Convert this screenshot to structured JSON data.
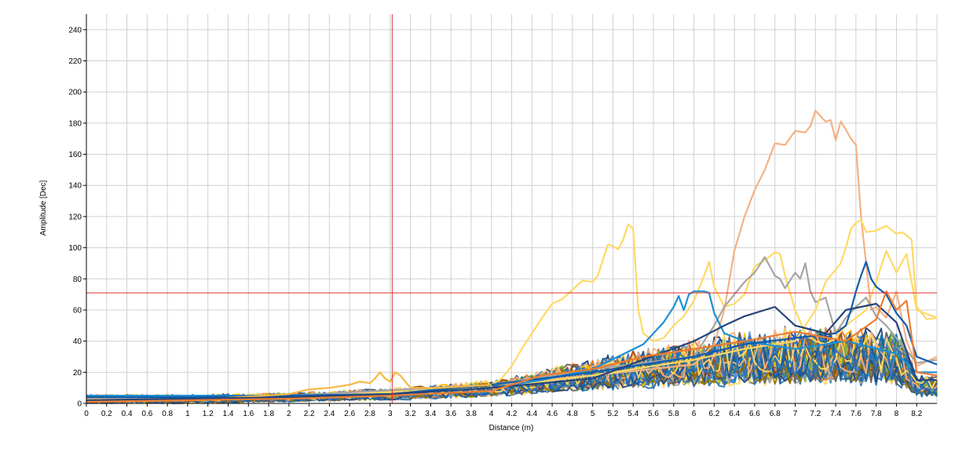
{
  "chart_data": {
    "type": "line",
    "title": "",
    "xlabel": "Distance (m)",
    "ylabel": "Amplitude [Dec]",
    "xlim": [
      0,
      8.4
    ],
    "ylim": [
      0,
      250
    ],
    "xticks": [
      0,
      0.2,
      0.4,
      0.6,
      0.8,
      1,
      1.2,
      1.4,
      1.6,
      1.8,
      2,
      2.2,
      2.4,
      2.6,
      2.8,
      3,
      3.2,
      3.4,
      3.6,
      3.8,
      4,
      4.2,
      4.4,
      4.6,
      4.8,
      5,
      5.2,
      5.4,
      5.6,
      5.8,
      6,
      6.2,
      6.4,
      6.6,
      6.8,
      7,
      7.2,
      7.4,
      7.6,
      7.8,
      8,
      8.2
    ],
    "yticks": [
      0,
      20,
      40,
      60,
      80,
      100,
      120,
      140,
      160,
      180,
      200,
      220,
      240
    ],
    "grid": true,
    "legend": "none",
    "cursor": {
      "x": 3.02,
      "y": 71,
      "color": "#e03030"
    },
    "noise_band": {
      "description_color_set": [
        "#4472c4",
        "#ed7d31",
        "#a5a5a5",
        "#ffc000",
        "#5b9bd5",
        "#70ad47",
        "#264478",
        "#9e480e",
        "#636363",
        "#997300",
        "#255e91",
        "#0b5cad",
        "#1f77b4",
        "#f4b183",
        "#ffd966",
        "#2e75b6"
      ],
      "count": 48,
      "envelope_x": [
        0,
        1,
        2,
        3,
        4,
        4.5,
        5,
        5.5,
        6,
        6.5,
        7,
        7.5,
        8,
        8.1,
        8.2,
        8.4
      ],
      "envelope_low": [
        0,
        0,
        1,
        2,
        4,
        6,
        8,
        9,
        10,
        11,
        11,
        11,
        10,
        8,
        4,
        4
      ],
      "envelope_high": [
        6,
        6,
        7,
        10,
        15,
        22,
        30,
        36,
        42,
        48,
        50,
        50,
        48,
        40,
        18,
        18
      ]
    },
    "series": [
      {
        "color": "#ffd966",
        "x": [
          0,
          1,
          2,
          3,
          4,
          4.1,
          4.2,
          4.3,
          4.4,
          4.5,
          4.6,
          4.7,
          4.8,
          4.9,
          5.0,
          5.05,
          5.1,
          5.15,
          5.2,
          5.25,
          5.3,
          5.35,
          5.4,
          5.45,
          5.5,
          5.6,
          5.7,
          5.8,
          5.9,
          6.0,
          6.1,
          6.15,
          6.2,
          6.3,
          6.4,
          6.5,
          6.6,
          6.7,
          6.8,
          6.85,
          6.9,
          7.0,
          7.1,
          7.2,
          7.3,
          7.4,
          7.5,
          7.6,
          7.7,
          7.8,
          7.9,
          8.0,
          8.1,
          8.2,
          8.4
        ],
        "y": [
          2,
          3,
          5,
          8,
          12,
          16,
          24,
          35,
          45,
          55,
          64,
          67,
          73,
          79,
          78,
          82,
          92,
          102,
          101,
          99,
          105,
          115,
          112,
          60,
          45,
          40,
          42,
          50,
          56,
          66,
          82,
          91,
          75,
          62,
          64,
          70,
          88,
          92,
          97,
          96,
          82,
          60,
          45,
          40,
          38,
          42,
          50,
          55,
          60,
          78,
          98,
          84,
          96,
          60,
          55
        ]
      },
      {
        "color": "#f4b183",
        "x": [
          0,
          2,
          4,
          5,
          6,
          6.2,
          6.3,
          6.4,
          6.5,
          6.6,
          6.7,
          6.8,
          6.9,
          7.0,
          7.1,
          7.15,
          7.2,
          7.3,
          7.35,
          7.4,
          7.45,
          7.5,
          7.55,
          7.6,
          7.65,
          7.7,
          7.75,
          7.8,
          7.9,
          8.0,
          8.1,
          8.2,
          8.4
        ],
        "y": [
          3,
          5,
          12,
          18,
          25,
          38,
          60,
          98,
          120,
          137,
          150,
          167,
          166,
          175,
          174,
          178,
          188,
          181,
          182,
          169,
          181,
          176,
          170,
          166,
          120,
          90,
          60,
          62,
          55,
          72,
          40,
          24,
          30
        ]
      },
      {
        "color": "#a5a5a5",
        "x": [
          0,
          2,
          4,
          5,
          6,
          6.2,
          6.3,
          6.4,
          6.5,
          6.6,
          6.7,
          6.8,
          6.85,
          6.9,
          7.0,
          7.05,
          7.1,
          7.15,
          7.2,
          7.3,
          7.4,
          7.5,
          7.6,
          7.7,
          7.8,
          7.9,
          8.0,
          8.2,
          8.4
        ],
        "y": [
          2,
          5,
          12,
          22,
          30,
          50,
          62,
          70,
          78,
          84,
          94,
          82,
          80,
          74,
          84,
          80,
          90,
          72,
          65,
          68,
          45,
          55,
          62,
          68,
          56,
          50,
          42,
          26,
          28
        ]
      },
      {
        "color": "#ffd966",
        "x": [
          0,
          2,
          4,
          5,
          6,
          6.5,
          7.0,
          7.2,
          7.3,
          7.4,
          7.45,
          7.5,
          7.55,
          7.6,
          7.65,
          7.7,
          7.8,
          7.9,
          8.0,
          8.05,
          8.1,
          8.15,
          8.2,
          8.3,
          8.4
        ],
        "y": [
          2,
          4,
          10,
          18,
          28,
          35,
          40,
          60,
          78,
          86,
          90,
          100,
          112,
          116,
          118,
          110,
          111,
          114,
          109,
          110,
          108,
          105,
          62,
          54,
          55
        ]
      },
      {
        "color": "#1f8fd1",
        "x": [
          0,
          1,
          2,
          3,
          4,
          4.5,
          5,
          5.5,
          5.6,
          5.7,
          5.8,
          5.85,
          5.9,
          5.95,
          6.0,
          6.05,
          6.1,
          6.15,
          6.2,
          6.3,
          6.5,
          7.0,
          7.5,
          8.0,
          8.2,
          8.4
        ],
        "y": [
          5,
          5,
          5,
          6,
          10,
          15,
          22,
          38,
          45,
          52,
          62,
          69,
          60,
          70,
          72,
          72,
          72,
          71,
          58,
          45,
          40,
          35,
          40,
          32,
          20,
          20
        ]
      },
      {
        "color": "#0b5cad",
        "x": [
          0,
          1,
          2,
          3,
          4,
          5,
          6,
          6.5,
          7.0,
          7.4,
          7.5,
          7.55,
          7.6,
          7.65,
          7.7,
          7.75,
          7.8,
          7.9,
          8.0,
          8.1,
          8.2,
          8.4
        ],
        "y": [
          4,
          4,
          5,
          6,
          12,
          20,
          30,
          38,
          42,
          45,
          50,
          60,
          72,
          82,
          91,
          80,
          75,
          70,
          58,
          50,
          30,
          25
        ]
      },
      {
        "color": "#f5b942",
        "x": [
          0,
          1,
          2,
          2.2,
          2.4,
          2.6,
          2.7,
          2.8,
          2.85,
          2.9,
          2.95,
          3.0,
          3.05,
          3.1,
          3.2,
          3.5,
          4.0
        ],
        "y": [
          1,
          2,
          6,
          9,
          10,
          12,
          14,
          13,
          16,
          20,
          16,
          14,
          20,
          18,
          10,
          10,
          12
        ]
      },
      {
        "color": "#264478",
        "x": [
          0,
          1,
          2,
          3,
          4,
          5,
          5.5,
          6,
          6.3,
          6.5,
          6.8,
          7,
          7.3,
          7.5,
          7.8,
          8,
          8.2,
          8.4
        ],
        "y": [
          2,
          3,
          4,
          6,
          10,
          16,
          28,
          40,
          50,
          56,
          62,
          50,
          45,
          60,
          64,
          52,
          15,
          15
        ]
      },
      {
        "color": "#ed7d31",
        "x": [
          0,
          1,
          2,
          3,
          4,
          4.5,
          5,
          5.5,
          6,
          6.5,
          7,
          7.5,
          7.8,
          7.9,
          8.0,
          8.1,
          8.2,
          8.4
        ],
        "y": [
          1,
          2,
          3,
          5,
          8,
          18,
          22,
          30,
          35,
          40,
          46,
          40,
          54,
          72,
          60,
          66,
          20,
          18
        ]
      }
    ]
  }
}
